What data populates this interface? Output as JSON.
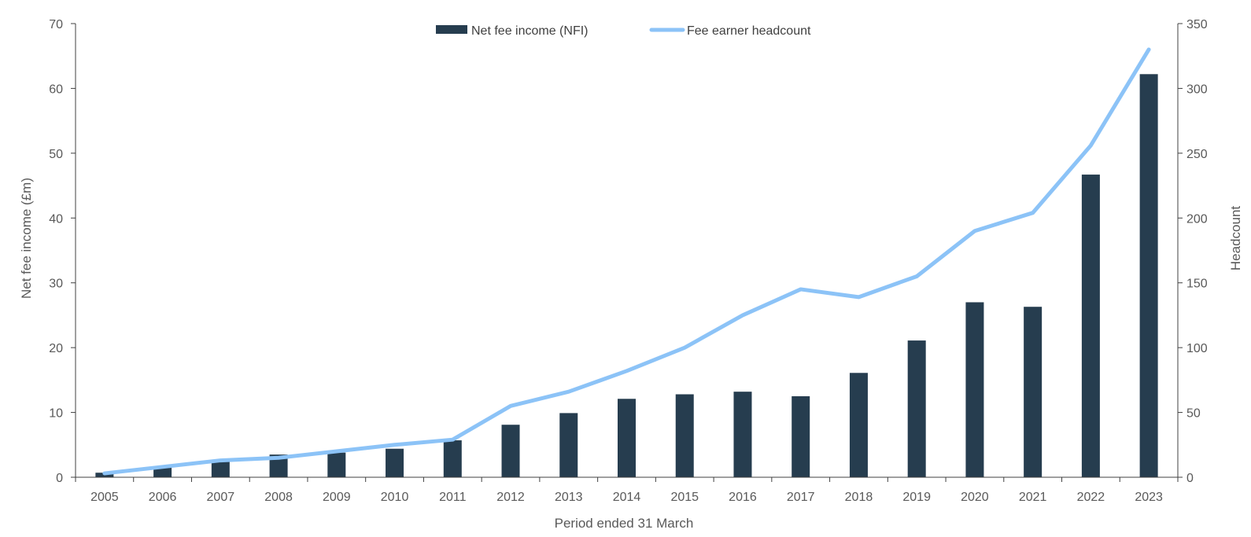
{
  "chart_data": {
    "type": "bar",
    "categories": [
      "2005",
      "2006",
      "2007",
      "2008",
      "2009",
      "2010",
      "2011",
      "2012",
      "2013",
      "2014",
      "2015",
      "2016",
      "2017",
      "2018",
      "2019",
      "2020",
      "2021",
      "2022",
      "2023"
    ],
    "series": [
      {
        "name": "Net fee income (NFI)",
        "type": "bar",
        "axis": "left",
        "color": "#263d4f",
        "values": [
          0.7,
          1.5,
          2.5,
          3.5,
          3.8,
          4.4,
          5.7,
          8.1,
          9.9,
          12.1,
          12.8,
          13.2,
          12.5,
          16.1,
          21.1,
          27.0,
          26.3,
          46.7,
          62.2
        ]
      },
      {
        "name": "Fee earner headcount",
        "type": "line",
        "axis": "right",
        "color": "#8cc3f7",
        "values": [
          3,
          8,
          13,
          15,
          20,
          25,
          29,
          55,
          66,
          82,
          100,
          125,
          145,
          139,
          155,
          190,
          204,
          256,
          330
        ]
      }
    ],
    "xlabel": "Period ended 31 March",
    "ylabel": "Net fee income (£m)",
    "y2label": "Headcount",
    "ylim": [
      0,
      70
    ],
    "y2lim": [
      0,
      350
    ],
    "yticks": [
      "0",
      "10",
      "20",
      "30",
      "40",
      "50",
      "60",
      "70"
    ],
    "y2ticks": [
      "0",
      "50",
      "100",
      "150",
      "200",
      "250",
      "300",
      "350"
    ],
    "grid": false,
    "legend_position": "top-center"
  }
}
